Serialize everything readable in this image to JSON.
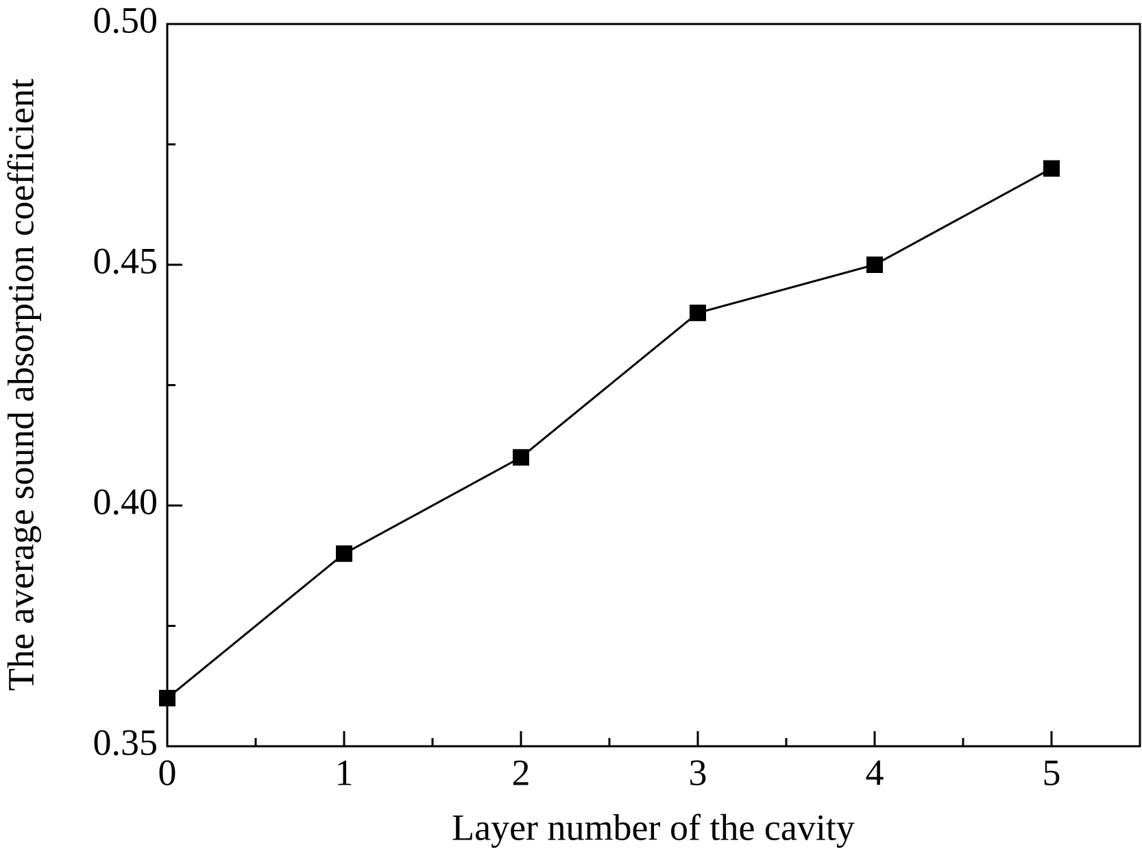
{
  "chart_data": {
    "type": "line",
    "x_label": "Layer number of the cavity",
    "y_label": "The average sound absorption coefficient",
    "x": [
      0,
      1,
      2,
      3,
      4,
      5
    ],
    "series": [
      {
        "color": "#000000",
        "marker": "square",
        "values": [
          0.36,
          0.39,
          0.41,
          0.44,
          0.45,
          0.47
        ]
      }
    ],
    "xlim": [
      0,
      5.5
    ],
    "xticks": [
      0,
      1,
      2,
      3,
      4,
      5
    ],
    "xminor_ticks": [
      0.5,
      1.5,
      2.5,
      3.5,
      4.5
    ],
    "ylim": [
      0.35,
      0.5
    ],
    "yticks": [
      {
        "value": 0.35,
        "label": "0.35"
      },
      {
        "value": 0.4,
        "label": "0.40"
      },
      {
        "value": 0.45,
        "label": "0.45"
      },
      {
        "value": 0.5,
        "label": "0.50"
      }
    ],
    "yminor_ticks": [
      0.375,
      0.425,
      0.475
    ],
    "grid": false
  }
}
